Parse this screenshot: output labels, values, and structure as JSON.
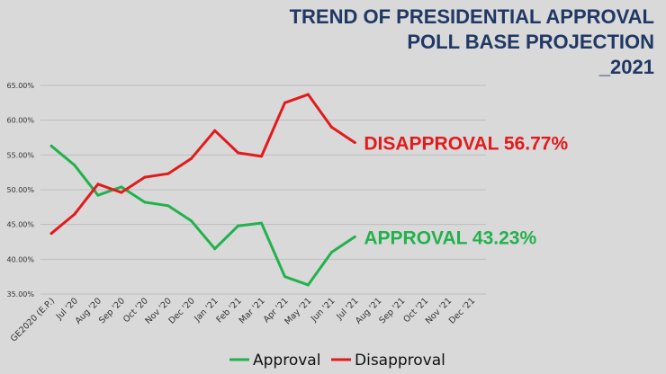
{
  "chart_data": {
    "type": "line",
    "title_lines": [
      "TREND OF PRESIDENTIAL APPROVAL",
      "POLL BASE PROJECTION",
      "_2021"
    ],
    "categories": [
      "GE2020 (E.P.)",
      "Jul '20",
      "Aug '20",
      "Sep '20",
      "Oct '20",
      "Nov '20",
      "Dec '20",
      "Jan '21",
      "Feb '21",
      "Mar '21",
      "Apr '21",
      "May '21",
      "Jun '21",
      "Jul '21",
      "Aug '21",
      "Sep '21",
      "Oct '21",
      "Nov '21",
      "Dec '21"
    ],
    "ylim": [
      35,
      65
    ],
    "yticks": [
      35,
      40,
      45,
      50,
      55,
      60,
      65
    ],
    "ytick_labels": [
      "35.00%",
      "40.00%",
      "45.00%",
      "50.00%",
      "55.00%",
      "60.00%",
      "65.00%"
    ],
    "grid": true,
    "series": [
      {
        "name": "Approval",
        "color": "#22b14c",
        "values": [
          56.3,
          53.5,
          49.2,
          50.4,
          48.2,
          47.7,
          45.5,
          41.5,
          44.8,
          45.2,
          37.5,
          36.3,
          41.0,
          43.23,
          null,
          null,
          null,
          null,
          null
        ],
        "end_label": "APPROVAL 43.23%"
      },
      {
        "name": "Disapproval",
        "color": "#e31a1c",
        "values": [
          43.7,
          46.5,
          50.8,
          49.6,
          51.8,
          52.3,
          54.5,
          58.5,
          55.3,
          54.8,
          62.5,
          63.7,
          59.0,
          56.77,
          null,
          null,
          null,
          null,
          null
        ],
        "end_label": "DISAPPROVAL 56.77%"
      }
    ],
    "legend": {
      "position": "bottom",
      "entries": [
        "Approval",
        "Disapproval"
      ]
    }
  }
}
